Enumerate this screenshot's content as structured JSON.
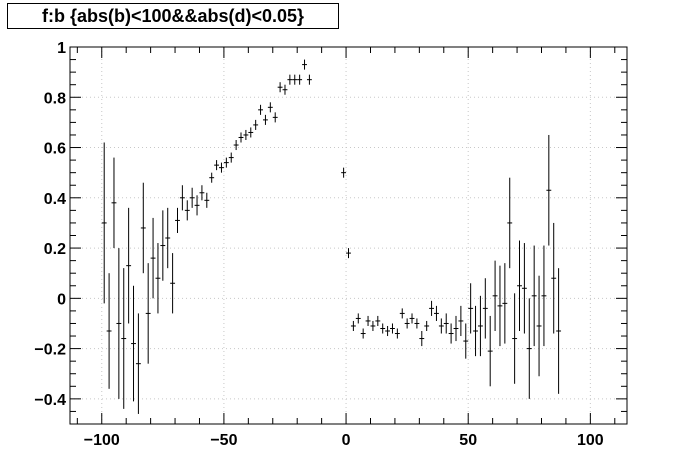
{
  "chart_data": {
    "type": "scatter",
    "title": "f:b {abs(b)<100&&abs(d)<0.05}",
    "xlabel": "",
    "ylabel": "",
    "xlim": [
      -113,
      115
    ],
    "ylim": [
      -0.5,
      1.0
    ],
    "xticks": [
      -100,
      -50,
      0,
      50,
      100
    ],
    "xtick_labels": [
      "−100",
      "−50",
      "0",
      "50",
      "100"
    ],
    "yticks": [
      -0.4,
      -0.2,
      0,
      0.2,
      0.4,
      0.6,
      0.8,
      1
    ],
    "ytick_labels": [
      "−0.4",
      "−0.2",
      "0",
      "0.2",
      "0.4",
      "0.6",
      "0.8",
      "1"
    ],
    "grid": true,
    "x_bin_halfwidth": 1,
    "series": [
      {
        "points": [
          {
            "x": -99,
            "y": 0.3,
            "err": 0.32
          },
          {
            "x": -97,
            "y": -0.13,
            "err": 0.23
          },
          {
            "x": -95,
            "y": 0.38,
            "err": 0.18
          },
          {
            "x": -93,
            "y": -0.1,
            "err": 0.3
          },
          {
            "x": -91,
            "y": -0.16,
            "err": 0.28
          },
          {
            "x": -89,
            "y": 0.13,
            "err": 0.23
          },
          {
            "x": -87,
            "y": -0.18,
            "err": 0.23
          },
          {
            "x": -85,
            "y": -0.26,
            "err": 0.2
          },
          {
            "x": -83,
            "y": 0.28,
            "err": 0.18
          },
          {
            "x": -81,
            "y": -0.06,
            "err": 0.2
          },
          {
            "x": -79,
            "y": 0.16,
            "err": 0.16
          },
          {
            "x": -77,
            "y": 0.08,
            "err": 0.14
          },
          {
            "x": -75,
            "y": 0.21,
            "err": 0.14
          },
          {
            "x": -73,
            "y": 0.24,
            "err": 0.12
          },
          {
            "x": -71,
            "y": 0.06,
            "err": 0.12
          },
          {
            "x": -69,
            "y": 0.31,
            "err": 0.05
          },
          {
            "x": -67,
            "y": 0.4,
            "err": 0.05
          },
          {
            "x": -65,
            "y": 0.35,
            "err": 0.04
          },
          {
            "x": -63,
            "y": 0.4,
            "err": 0.04
          },
          {
            "x": -61,
            "y": 0.37,
            "err": 0.04
          },
          {
            "x": -59,
            "y": 0.42,
            "err": 0.03
          },
          {
            "x": -57,
            "y": 0.39,
            "err": 0.03
          },
          {
            "x": -55,
            "y": 0.48,
            "err": 0.02
          },
          {
            "x": -53,
            "y": 0.53,
            "err": 0.02
          },
          {
            "x": -51,
            "y": 0.52,
            "err": 0.02
          },
          {
            "x": -49,
            "y": 0.54,
            "err": 0.02
          },
          {
            "x": -47,
            "y": 0.56,
            "err": 0.02
          },
          {
            "x": -45,
            "y": 0.61,
            "err": 0.02
          },
          {
            "x": -43,
            "y": 0.64,
            "err": 0.02
          },
          {
            "x": -41,
            "y": 0.65,
            "err": 0.02
          },
          {
            "x": -39,
            "y": 0.66,
            "err": 0.02
          },
          {
            "x": -37,
            "y": 0.69,
            "err": 0.02
          },
          {
            "x": -35,
            "y": 0.75,
            "err": 0.02
          },
          {
            "x": -33,
            "y": 0.71,
            "err": 0.02
          },
          {
            "x": -31,
            "y": 0.76,
            "err": 0.02
          },
          {
            "x": -29,
            "y": 0.72,
            "err": 0.02
          },
          {
            "x": -27,
            "y": 0.84,
            "err": 0.02
          },
          {
            "x": -25,
            "y": 0.83,
            "err": 0.02
          },
          {
            "x": -23,
            "y": 0.87,
            "err": 0.02
          },
          {
            "x": -21,
            "y": 0.87,
            "err": 0.02
          },
          {
            "x": -19,
            "y": 0.87,
            "err": 0.02
          },
          {
            "x": -17,
            "y": 0.93,
            "err": 0.02
          },
          {
            "x": -15,
            "y": 0.87,
            "err": 0.02
          },
          {
            "x": -1,
            "y": 0.5,
            "err": 0.02
          },
          {
            "x": 1,
            "y": 0.18,
            "err": 0.02
          },
          {
            "x": 3,
            "y": -0.11,
            "err": 0.02
          },
          {
            "x": 5,
            "y": -0.08,
            "err": 0.02
          },
          {
            "x": 7,
            "y": -0.14,
            "err": 0.02
          },
          {
            "x": 9,
            "y": -0.09,
            "err": 0.02
          },
          {
            "x": 11,
            "y": -0.11,
            "err": 0.02
          },
          {
            "x": 13,
            "y": -0.09,
            "err": 0.02
          },
          {
            "x": 15,
            "y": -0.12,
            "err": 0.02
          },
          {
            "x": 17,
            "y": -0.13,
            "err": 0.02
          },
          {
            "x": 19,
            "y": -0.12,
            "err": 0.02
          },
          {
            "x": 21,
            "y": -0.14,
            "err": 0.02
          },
          {
            "x": 23,
            "y": -0.06,
            "err": 0.02
          },
          {
            "x": 25,
            "y": -0.1,
            "err": 0.02
          },
          {
            "x": 27,
            "y": -0.08,
            "err": 0.02
          },
          {
            "x": 29,
            "y": -0.1,
            "err": 0.02
          },
          {
            "x": 31,
            "y": -0.16,
            "err": 0.03
          },
          {
            "x": 33,
            "y": -0.11,
            "err": 0.02
          },
          {
            "x": 35,
            "y": -0.04,
            "err": 0.03
          },
          {
            "x": 37,
            "y": -0.06,
            "err": 0.03
          },
          {
            "x": 39,
            "y": -0.11,
            "err": 0.03
          },
          {
            "x": 41,
            "y": -0.1,
            "err": 0.04
          },
          {
            "x": 43,
            "y": -0.14,
            "err": 0.04
          },
          {
            "x": 45,
            "y": -0.12,
            "err": 0.05
          },
          {
            "x": 47,
            "y": -0.09,
            "err": 0.06
          },
          {
            "x": 49,
            "y": -0.17,
            "err": 0.07
          },
          {
            "x": 51,
            "y": -0.04,
            "err": 0.1
          },
          {
            "x": 53,
            "y": -0.13,
            "err": 0.1
          },
          {
            "x": 55,
            "y": -0.11,
            "err": 0.12
          },
          {
            "x": 57,
            "y": -0.04,
            "err": 0.12
          },
          {
            "x": 59,
            "y": -0.21,
            "err": 0.14
          },
          {
            "x": 61,
            "y": 0.01,
            "err": 0.14
          },
          {
            "x": 63,
            "y": -0.03,
            "err": 0.16
          },
          {
            "x": 65,
            "y": -0.02,
            "err": 0.16
          },
          {
            "x": 67,
            "y": 0.3,
            "err": 0.18
          },
          {
            "x": 69,
            "y": -0.16,
            "err": 0.18
          },
          {
            "x": 71,
            "y": 0.05,
            "err": 0.18
          },
          {
            "x": 73,
            "y": 0.04,
            "err": 0.18
          },
          {
            "x": 75,
            "y": -0.2,
            "err": 0.2
          },
          {
            "x": 77,
            "y": 0.01,
            "err": 0.2
          },
          {
            "x": 79,
            "y": -0.11,
            "err": 0.2
          },
          {
            "x": 81,
            "y": 0.01,
            "err": 0.2
          },
          {
            "x": 83,
            "y": 0.43,
            "err": 0.22
          },
          {
            "x": 85,
            "y": 0.08,
            "err": 0.22
          },
          {
            "x": 87,
            "y": -0.13,
            "err": 0.25
          }
        ]
      }
    ]
  }
}
